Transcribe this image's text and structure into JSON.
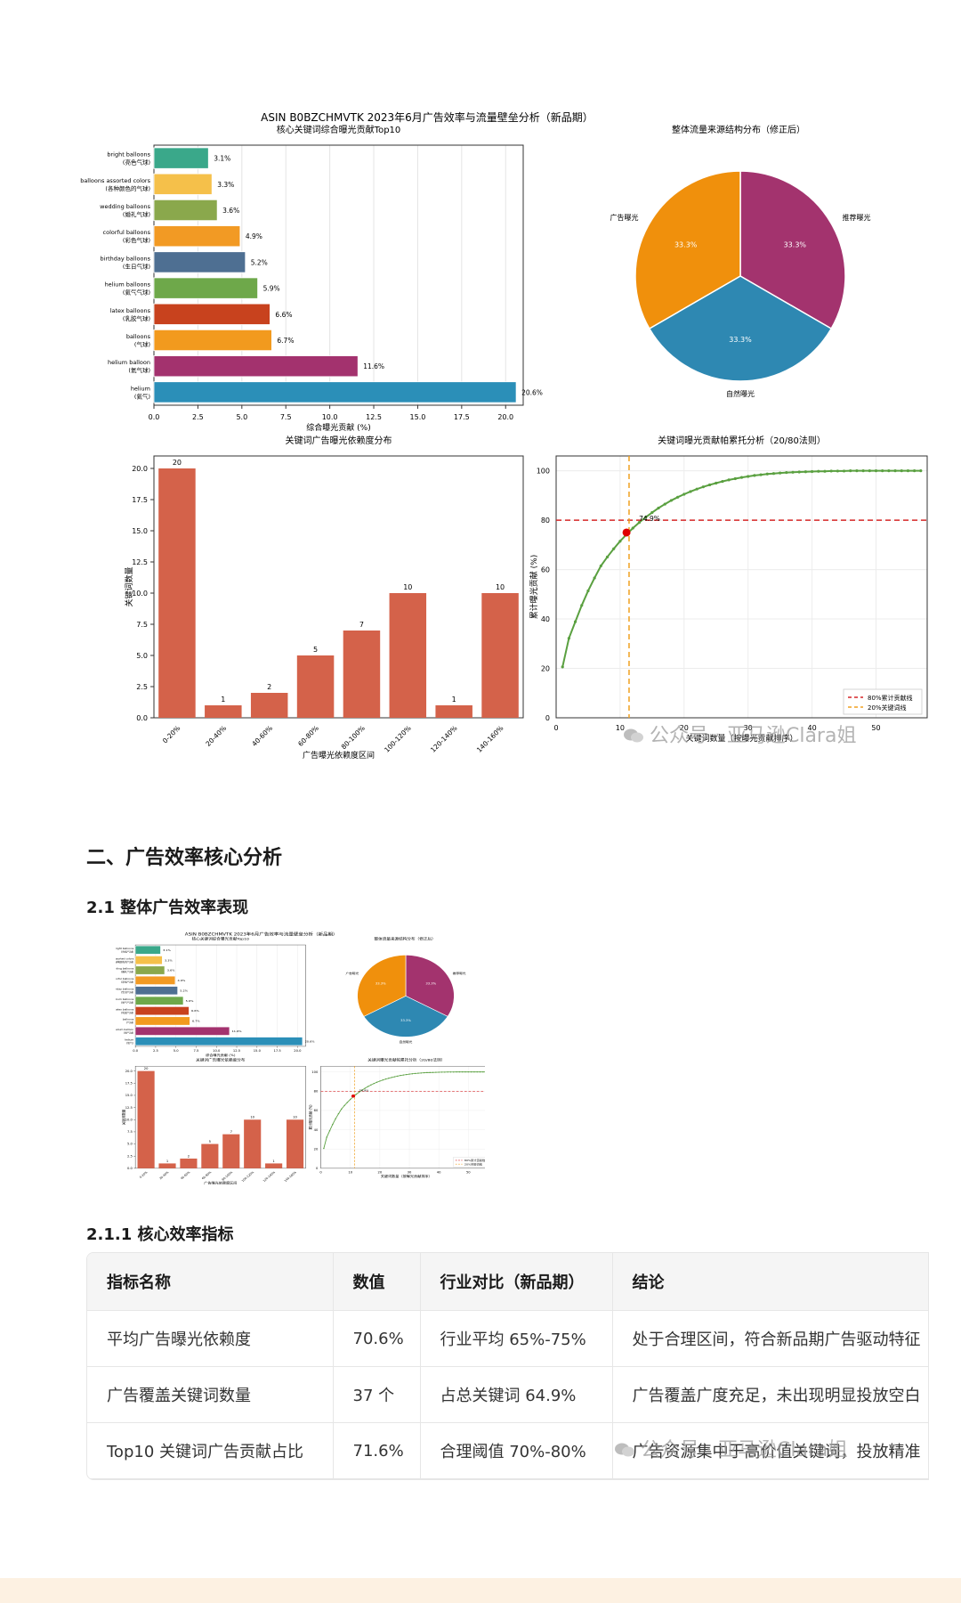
{
  "page": {
    "section_title": "二、广告效率核心分析",
    "subsection_title": "2.1 整体广告效率表现",
    "subsubsection_title": "2.1.1 核心效率指标",
    "watermark": "公众号 · 亚马逊Clara姐"
  },
  "figure": {
    "suptitle": "ASIN B0BZCHMVTK 2023年6月广告效率与流量壁垒分析（新品期）"
  },
  "chart_data": [
    {
      "type": "bar",
      "orientation": "horizontal",
      "title": "核心关键词综合曝光贡献Top10",
      "xlabel": "综合曝光贡献 (%)",
      "xlim": [
        0,
        21
      ],
      "xticks": [
        0.0,
        2.5,
        5.0,
        7.5,
        10.0,
        12.5,
        15.0,
        17.5,
        20.0
      ],
      "grid": true,
      "categories": [
        {
          "en": "bright balloons",
          "zh": "(亮色气球)"
        },
        {
          "en": "balloons assorted colors",
          "zh": "(各种颜色的气球)"
        },
        {
          "en": "wedding balloons",
          "zh": "(婚礼气球)"
        },
        {
          "en": "colorful balloons",
          "zh": "(彩色气球)"
        },
        {
          "en": "birthday balloons",
          "zh": "(生日气球)"
        },
        {
          "en": "helium balloons",
          "zh": "(氦气气球)"
        },
        {
          "en": "latex balloons",
          "zh": "(乳胶气球)"
        },
        {
          "en": "balloons",
          "zh": "(气球)"
        },
        {
          "en": "helium balloon",
          "zh": "(氦气球)"
        },
        {
          "en": "helium",
          "zh": "(氦气)"
        }
      ],
      "values": [
        3.1,
        3.3,
        3.6,
        4.9,
        5.2,
        5.9,
        6.6,
        6.7,
        11.6,
        20.6
      ],
      "value_labels": [
        "3.1%",
        "3.3%",
        "3.6%",
        "4.9%",
        "5.2%",
        "5.9%",
        "6.6%",
        "6.7%",
        "11.6%",
        "20.6%"
      ],
      "colors": [
        "#3aa88a",
        "#f5c04a",
        "#8aa84c",
        "#f29a24",
        "#4e6f92",
        "#6ea84a",
        "#c8421e",
        "#f29a1e",
        "#a3326e",
        "#2b8fb8"
      ]
    },
    {
      "type": "pie",
      "title": "整体流量来源结构分布（修正后）",
      "labels": [
        "推荐曝光",
        "自然曝光",
        "广告曝光"
      ],
      "values": [
        33.3,
        33.3,
        33.3
      ],
      "value_labels": [
        "33.3%",
        "33.3%",
        "33.3%"
      ],
      "colors": [
        "#a3336e",
        "#2e88b2",
        "#f0900c"
      ]
    },
    {
      "type": "bar",
      "title": "关键词广告曝光依赖度分布",
      "xlabel": "广告曝光依赖度区间",
      "ylabel": "关键词数量",
      "ylim": [
        0,
        21
      ],
      "yticks": [
        0.0,
        2.5,
        5.0,
        7.5,
        10.0,
        12.5,
        15.0,
        17.5,
        20.0
      ],
      "categories": [
        "0-20%",
        "20-40%",
        "40-60%",
        "60-80%",
        "80-100%",
        "100-120%",
        "120-140%",
        "140-160%"
      ],
      "values": [
        20,
        1,
        2,
        5,
        7,
        10,
        1,
        10
      ],
      "color": "#d4624a"
    },
    {
      "type": "line",
      "title": "关键词曝光贡献帕累托分析（20/80法则）",
      "xlabel": "关键词数量（按曝光贡献排序）",
      "ylabel": "累计曝光贡献 (%)",
      "xlim": [
        0,
        58
      ],
      "ylim": [
        0,
        106
      ],
      "xticks": [
        0,
        10,
        20,
        30,
        40,
        50
      ],
      "yticks": [
        0,
        20,
        40,
        60,
        80,
        100
      ],
      "grid": true,
      "series": [
        {
          "name": "",
          "color": "#5aa040",
          "x": [
            1,
            2,
            3,
            4,
            5,
            6,
            7,
            8,
            9,
            10,
            11,
            12,
            13,
            14,
            15,
            16,
            17,
            18,
            19,
            20,
            21,
            22,
            23,
            24,
            25,
            26,
            27,
            28,
            29,
            30,
            31,
            32,
            33,
            34,
            35,
            36,
            37,
            38,
            39,
            40,
            41,
            42,
            43,
            44,
            45,
            46,
            47,
            48,
            49,
            50,
            51,
            52,
            53,
            54,
            55,
            56,
            57
          ],
          "y": [
            20.6,
            32.2,
            38.9,
            45.5,
            51.4,
            56.6,
            61.5,
            65.1,
            68.4,
            71.5,
            74.2,
            76.8,
            79.1,
            81.2,
            83.1,
            84.9,
            86.5,
            88.0,
            89.3,
            90.5,
            91.6,
            92.6,
            93.5,
            94.3,
            95.0,
            95.7,
            96.3,
            96.8,
            97.3,
            97.7,
            98.1,
            98.4,
            98.7,
            98.9,
            99.1,
            99.3,
            99.4,
            99.5,
            99.6,
            99.7,
            99.8,
            99.8,
            99.9,
            99.9,
            99.9,
            100,
            100,
            100,
            100,
            100,
            100,
            100,
            100,
            100,
            100,
            100,
            100
          ]
        }
      ],
      "reference_lines": [
        {
          "name": "80%累计贡献线",
          "axis": "y",
          "value": 80,
          "color": "#d62728"
        },
        {
          "name": "20%关键词线",
          "axis": "x",
          "value": 11.4,
          "color": "#f0a020"
        }
      ],
      "marker_point": {
        "x": 11,
        "y": 75,
        "color": "#e00000"
      },
      "annotation": "74.9%",
      "legend_position": "lower right"
    }
  ],
  "table": {
    "headers": [
      "指标名称",
      "数值",
      "行业对比（新品期）",
      "结论"
    ],
    "rows": [
      [
        "平均广告曝光依赖度",
        "70.6%",
        "行业平均 65%-75%",
        "处于合理区间，符合新品期广告驱动特征"
      ],
      [
        "广告覆盖关键词数量",
        "37 个",
        "占总关键词 64.9%",
        "广告覆盖广度充足，未出现明显投放空白"
      ],
      [
        "Top10 关键词广告贡献占比",
        "71.6%",
        "合理阈值 70%-80%",
        "广告资源集中于高价值关键词，投放精准"
      ]
    ]
  }
}
